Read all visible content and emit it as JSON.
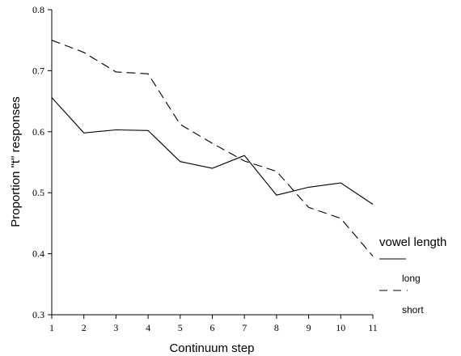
{
  "chart_data": {
    "type": "line",
    "xlabel": "Continuum step",
    "ylabel": "Proportion \"t\" responses",
    "x": [
      1,
      2,
      3,
      4,
      5,
      6,
      7,
      8,
      9,
      10,
      11
    ],
    "xlim": [
      1,
      11
    ],
    "ylim": [
      0.3,
      0.8
    ],
    "xticks": [
      "1",
      "2",
      "3",
      "4",
      "5",
      "6",
      "7",
      "8",
      "9",
      "10",
      "11"
    ],
    "yticks": [
      "0.3",
      "0.4",
      "0.5",
      "0.6",
      "0.7",
      "0.8"
    ],
    "grid": false,
    "legend": {
      "title": "vowel length",
      "placement": "right"
    },
    "series": [
      {
        "name": "long",
        "style": "solid",
        "values": [
          0.656,
          0.598,
          0.603,
          0.602,
          0.551,
          0.54,
          0.561,
          0.496,
          0.509,
          0.516,
          0.481
        ]
      },
      {
        "name": "short",
        "style": "dashed",
        "values": [
          0.75,
          0.73,
          0.698,
          0.695,
          0.612,
          0.581,
          0.552,
          0.535,
          0.476,
          0.458,
          0.396
        ]
      }
    ]
  }
}
